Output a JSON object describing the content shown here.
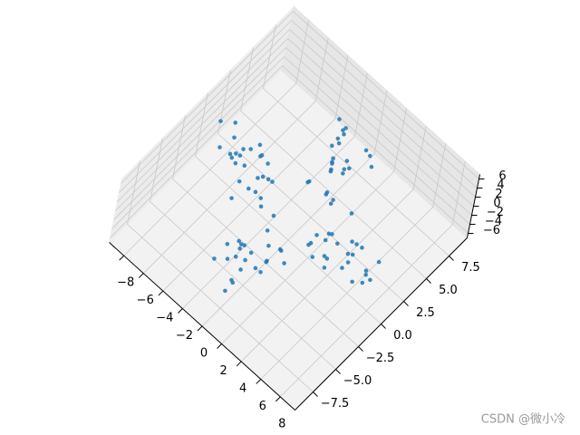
{
  "chart_data": {
    "type": "scatter3d",
    "xlim": [
      -9.5,
      9.5
    ],
    "ylim": [
      -9.5,
      9.5
    ],
    "zlim": [
      -7,
      7
    ],
    "xticks": [
      {
        "value": -8,
        "label": "−8"
      },
      {
        "value": -6,
        "label": "−6"
      },
      {
        "value": -4,
        "label": "−4"
      },
      {
        "value": -2,
        "label": "−2"
      },
      0,
      2,
      4,
      6,
      8
    ],
    "yticks": [
      {
        "value": -7.5,
        "label": "−7.5"
      },
      {
        "value": -5,
        "label": "−5.0"
      },
      {
        "value": -2.5,
        "label": "−2.5"
      },
      {
        "value": 0,
        "label": "0.0"
      },
      2.5,
      {
        "value": 5,
        "label": "5.0"
      },
      7.5
    ],
    "zticks": [
      {
        "value": -6,
        "label": "−6"
      },
      {
        "value": -4,
        "label": "−4"
      },
      {
        "value": -2,
        "label": "−2"
      },
      0,
      2,
      4,
      6
    ],
    "grid": true,
    "series": [
      {
        "color": "#1f77b4",
        "x": [
          -4.7,
          -6.2,
          -2.9,
          -5.5,
          -3.6,
          -7.3,
          -4.2,
          -5.1,
          -3.1,
          -6.7,
          -4.5,
          -5.9,
          -2.2,
          -7.6,
          -3.9,
          -5.4,
          -5.0,
          -3.4,
          -6.4,
          -4.3,
          -8.1,
          -2.6,
          -5.7,
          -3.8,
          -6.9,
          0.6,
          -0.9,
          -0.2,
          1.3,
          -0.5,
          -1.1,
          0.2,
          -1.6,
          0.9,
          -0.4,
          1.8,
          -0.7,
          0.3,
          -0.1,
          -1.3,
          1.0,
          -2.0,
          0.5,
          -0.8,
          1.5,
          -0.3,
          0.8,
          -1.4,
          0.1,
          -0.6,
          0.6,
          -0.1,
          1.4,
          -0.8,
          0.3,
          -1.5,
          0.8,
          -0.5,
          2.0,
          -1.0,
          1.3,
          0.1,
          -0.3,
          0.7,
          -1.8,
          0.4,
          -0.9,
          1.6,
          -0.2,
          1.1,
          0.5,
          -1.3,
          0.2,
          0.9,
          -0.6,
          4.7,
          6.2,
          2.9,
          5.5,
          3.6,
          7.3,
          4.2,
          5.1,
          3.1,
          6.7,
          4.5,
          5.9,
          2.2,
          7.6,
          3.9,
          5.4,
          5.0,
          3.4,
          6.4,
          4.3,
          8.1,
          2.6,
          5.7,
          3.8,
          6.9
        ],
        "y": [
          -0.6,
          0.9,
          0.2,
          -1.3,
          0.5,
          1.1,
          -0.2,
          1.6,
          -0.9,
          0.4,
          -1.8,
          0.7,
          -0.3,
          0.1,
          1.3,
          -1.0,
          2.0,
          -0.5,
          0.8,
          -1.5,
          0.3,
          -0.8,
          1.4,
          -0.1,
          0.6,
          3.1,
          6.2,
          4.3,
          7.4,
          1.9,
          5.7,
          3.6,
          6.6,
          5.0,
          4.6,
          6.1,
          2.4,
          7.8,
          4.1,
          5.5,
          3.3,
          6.9,
          4.9,
          5.8,
          2.7,
          6.4,
          4.5,
          7.1,
          3.8,
          5.3,
          -4.7,
          -6.2,
          -2.9,
          -5.5,
          -3.6,
          -7.3,
          -4.2,
          -5.1,
          -3.1,
          -6.7,
          -4.5,
          -5.9,
          -2.2,
          -7.6,
          -3.9,
          -5.4,
          -5.0,
          -3.4,
          -6.4,
          -4.3,
          -8.1,
          -2.6,
          -5.7,
          -3.8,
          -6.9,
          -0.6,
          0.1,
          -1.4,
          0.8,
          -0.3,
          1.5,
          -0.8,
          0.5,
          -2.0,
          1.0,
          -1.3,
          -0.1,
          0.3,
          -0.7,
          1.8,
          -0.4,
          0.9,
          -1.6,
          0.2,
          -1.1,
          -0.5,
          1.3,
          -0.2,
          -0.9,
          0.6
        ],
        "z": [
          1.5,
          -2.2,
          0.4,
          3.1,
          -1.0,
          2.5,
          -3.4,
          0.9,
          -0.6,
          1.8,
          -2.9,
          0.2,
          2.2,
          -1.5,
          -0.3,
          3.6,
          -2.0,
          1.1,
          -4.1,
          0.6,
          2.9,
          -1.2,
          -0.8,
          4.3,
          -2.6,
          -1.5,
          2.2,
          -0.4,
          -3.1,
          1.0,
          -2.5,
          3.4,
          -0.9,
          0.6,
          -1.8,
          2.9,
          -0.2,
          -2.2,
          1.5,
          0.3,
          -3.6,
          2.0,
          -1.1,
          4.1,
          -0.6,
          -2.9,
          1.2,
          0.8,
          -4.3,
          2.6,
          -2.6,
          4.3,
          -0.8,
          -1.2,
          2.9,
          0.6,
          -4.1,
          1.1,
          -2.0,
          3.6,
          -0.3,
          -1.5,
          2.2,
          0.2,
          -2.9,
          1.8,
          -0.6,
          0.9,
          -3.4,
          2.5,
          -1.0,
          3.1,
          0.4,
          -2.2,
          1.5,
          2.6,
          -4.3,
          0.8,
          1.2,
          -2.9,
          -0.6,
          4.1,
          -1.1,
          2.0,
          -3.6,
          0.3,
          1.5,
          -2.2,
          -0.2,
          2.9,
          -1.8,
          0.6,
          -0.9,
          3.4,
          -2.5,
          1.0,
          -3.1,
          -0.4,
          2.2,
          -1.5
        ]
      }
    ]
  },
  "watermark": "CSDN @微小冷"
}
